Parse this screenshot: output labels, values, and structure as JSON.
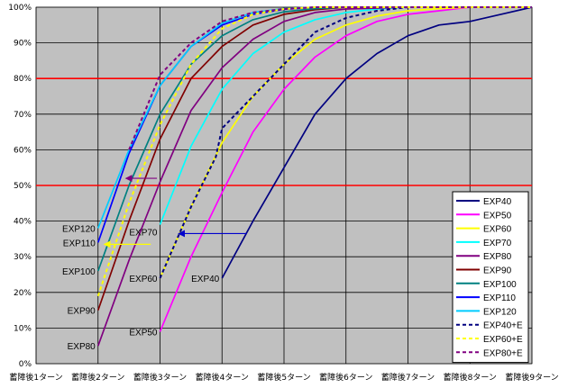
{
  "chart_data": {
    "type": "line",
    "categories": [
      "蓄障後1ターン",
      "蓄障後2ターン",
      "蓄障後3ターン",
      "蓄障後4ターン",
      "蓄障後5ターン",
      "蓄障後6ターン",
      "蓄障後7ターン",
      "蓄障後8ターン",
      "蓄障後9ターン"
    ],
    "y_ticks": [
      "0%",
      "10%",
      "20%",
      "30%",
      "40%",
      "50%",
      "60%",
      "70%",
      "80%",
      "90%",
      "100%"
    ],
    "ylim": [
      0,
      100
    ],
    "xlim": [
      1,
      9
    ],
    "grid": true,
    "legend_position": "bottom-right",
    "reference_lines": [
      50,
      80
    ],
    "colors": {
      "plot_bg": "#c0c0c0",
      "grid": "#000000",
      "reference": "#ff0000"
    },
    "series": [
      {
        "name": "EXP40",
        "color": "#000080",
        "dash": false,
        "points": [
          [
            4,
            24
          ],
          [
            4.5,
            40
          ],
          [
            5,
            55
          ],
          [
            5.5,
            70
          ],
          [
            6,
            80
          ],
          [
            6.5,
            87
          ],
          [
            7,
            92
          ],
          [
            7.5,
            95
          ],
          [
            8,
            96
          ],
          [
            8.5,
            98
          ],
          [
            9,
            100
          ]
        ]
      },
      {
        "name": "EXP50",
        "color": "#ff00ff",
        "dash": false,
        "points": [
          [
            3,
            9
          ],
          [
            3.5,
            30
          ],
          [
            4,
            48
          ],
          [
            4.5,
            65
          ],
          [
            5,
            77
          ],
          [
            5.5,
            86
          ],
          [
            6,
            92
          ],
          [
            6.5,
            96
          ],
          [
            7,
            98
          ],
          [
            7.5,
            99
          ],
          [
            8,
            100
          ],
          [
            9,
            100
          ]
        ]
      },
      {
        "name": "EXP60",
        "color": "#ffff00",
        "dash": false,
        "points": [
          [
            3,
            24
          ],
          [
            3.5,
            44
          ],
          [
            4,
            62
          ],
          [
            4.5,
            75
          ],
          [
            5,
            84
          ],
          [
            5.5,
            91
          ],
          [
            6,
            95
          ],
          [
            6.5,
            97.5
          ],
          [
            7,
            99
          ],
          [
            7.5,
            99.6
          ],
          [
            8,
            100
          ],
          [
            9,
            100
          ]
        ]
      },
      {
        "name": "EXP70",
        "color": "#00ffff",
        "dash": false,
        "points": [
          [
            3,
            39
          ],
          [
            3.5,
            61
          ],
          [
            4,
            77
          ],
          [
            4.5,
            87
          ],
          [
            5,
            93
          ],
          [
            5.5,
            96.5
          ],
          [
            6,
            98.5
          ],
          [
            6.5,
            99.5
          ],
          [
            7,
            100
          ],
          [
            9,
            100
          ]
        ]
      },
      {
        "name": "EXP80",
        "color": "#800080",
        "dash": false,
        "points": [
          [
            2,
            5
          ],
          [
            2.5,
            29
          ],
          [
            3,
            51
          ],
          [
            3.5,
            71
          ],
          [
            4,
            83
          ],
          [
            4.5,
            91
          ],
          [
            5,
            96
          ],
          [
            5.5,
            98.5
          ],
          [
            6,
            99.5
          ],
          [
            7,
            100
          ],
          [
            9,
            100
          ]
        ]
      },
      {
        "name": "EXP90",
        "color": "#800000",
        "dash": false,
        "points": [
          [
            2,
            15
          ],
          [
            2.5,
            40
          ],
          [
            3,
            63
          ],
          [
            3.5,
            80
          ],
          [
            4,
            89
          ],
          [
            4.5,
            95
          ],
          [
            5,
            98
          ],
          [
            5.5,
            99.3
          ],
          [
            6,
            100
          ],
          [
            9,
            100
          ]
        ]
      },
      {
        "name": "EXP100",
        "color": "#008080",
        "dash": false,
        "points": [
          [
            2,
            26
          ],
          [
            2.5,
            50
          ],
          [
            3,
            70
          ],
          [
            3.5,
            84
          ],
          [
            4,
            92
          ],
          [
            4.5,
            96.5
          ],
          [
            5,
            98.7
          ],
          [
            5.5,
            99.6
          ],
          [
            6,
            100
          ],
          [
            9,
            100
          ]
        ]
      },
      {
        "name": "EXP110",
        "color": "#0000ff",
        "dash": false,
        "points": [
          [
            2,
            34
          ],
          [
            2.5,
            59
          ],
          [
            3,
            78
          ],
          [
            3.5,
            89
          ],
          [
            4,
            95
          ],
          [
            4.5,
            98
          ],
          [
            5,
            99.4
          ],
          [
            5.5,
            100
          ],
          [
            9,
            100
          ]
        ]
      },
      {
        "name": "EXP120",
        "color": "#00ccff",
        "dash": false,
        "points": [
          [
            2,
            38
          ],
          [
            2.5,
            60
          ],
          [
            3,
            78
          ],
          [
            3.5,
            89
          ],
          [
            4,
            95.5
          ],
          [
            4.5,
            98.5
          ],
          [
            5,
            99.6
          ],
          [
            5.5,
            100
          ],
          [
            9,
            100
          ]
        ]
      },
      {
        "name": "EXP40+E",
        "color": "#000080",
        "dash": true,
        "points": [
          [
            3,
            24
          ],
          [
            3.5,
            44
          ],
          [
            3.9,
            58
          ],
          [
            4,
            66
          ],
          [
            4.5,
            75
          ],
          [
            5,
            84
          ],
          [
            5.5,
            93
          ],
          [
            6,
            97
          ],
          [
            6.5,
            99
          ],
          [
            7,
            100
          ],
          [
            9,
            100
          ]
        ]
      },
      {
        "name": "EXP60+E",
        "color": "#ffff00",
        "dash": true,
        "points": [
          [
            2,
            19
          ],
          [
            2.5,
            45
          ],
          [
            3,
            67
          ],
          [
            3.5,
            84
          ],
          [
            4,
            94
          ],
          [
            4.5,
            98
          ],
          [
            5,
            99.5
          ],
          [
            5.5,
            100
          ],
          [
            9,
            100
          ]
        ]
      },
      {
        "name": "EXP80+E",
        "color": "#800080",
        "dash": true,
        "points": [
          [
            2.5,
            60
          ],
          [
            3,
            81
          ],
          [
            3.5,
            90
          ],
          [
            4,
            96
          ],
          [
            4.5,
            98.5
          ],
          [
            5,
            99.5
          ],
          [
            5.5,
            100
          ],
          [
            9,
            100
          ]
        ]
      }
    ],
    "annotations": [
      {
        "text": "EXP120",
        "x": 2,
        "y": 38
      },
      {
        "text": "EXP110",
        "x": 2,
        "y": 34
      },
      {
        "text": "EXP100",
        "x": 2,
        "y": 26
      },
      {
        "text": "EXP90",
        "x": 2,
        "y": 15
      },
      {
        "text": "EXP80",
        "x": 2,
        "y": 5
      },
      {
        "text": "EXP70",
        "x": 3,
        "y": 37
      },
      {
        "text": "EXP60",
        "x": 3,
        "y": 24
      },
      {
        "text": "EXP50",
        "x": 3,
        "y": 9
      },
      {
        "text": "EXP40",
        "x": 4,
        "y": 24
      }
    ],
    "arrows": [
      {
        "from": [
          4.4,
          36.5
        ],
        "to": [
          3.3,
          36.5
        ],
        "color": "#0000cc"
      },
      {
        "from": [
          2.85,
          33.5
        ],
        "to": [
          2.1,
          33.5
        ],
        "color": "#ffff00"
      },
      {
        "from": [
          2.95,
          52
        ],
        "to": [
          2.45,
          52
        ],
        "color": "#800080"
      }
    ]
  }
}
